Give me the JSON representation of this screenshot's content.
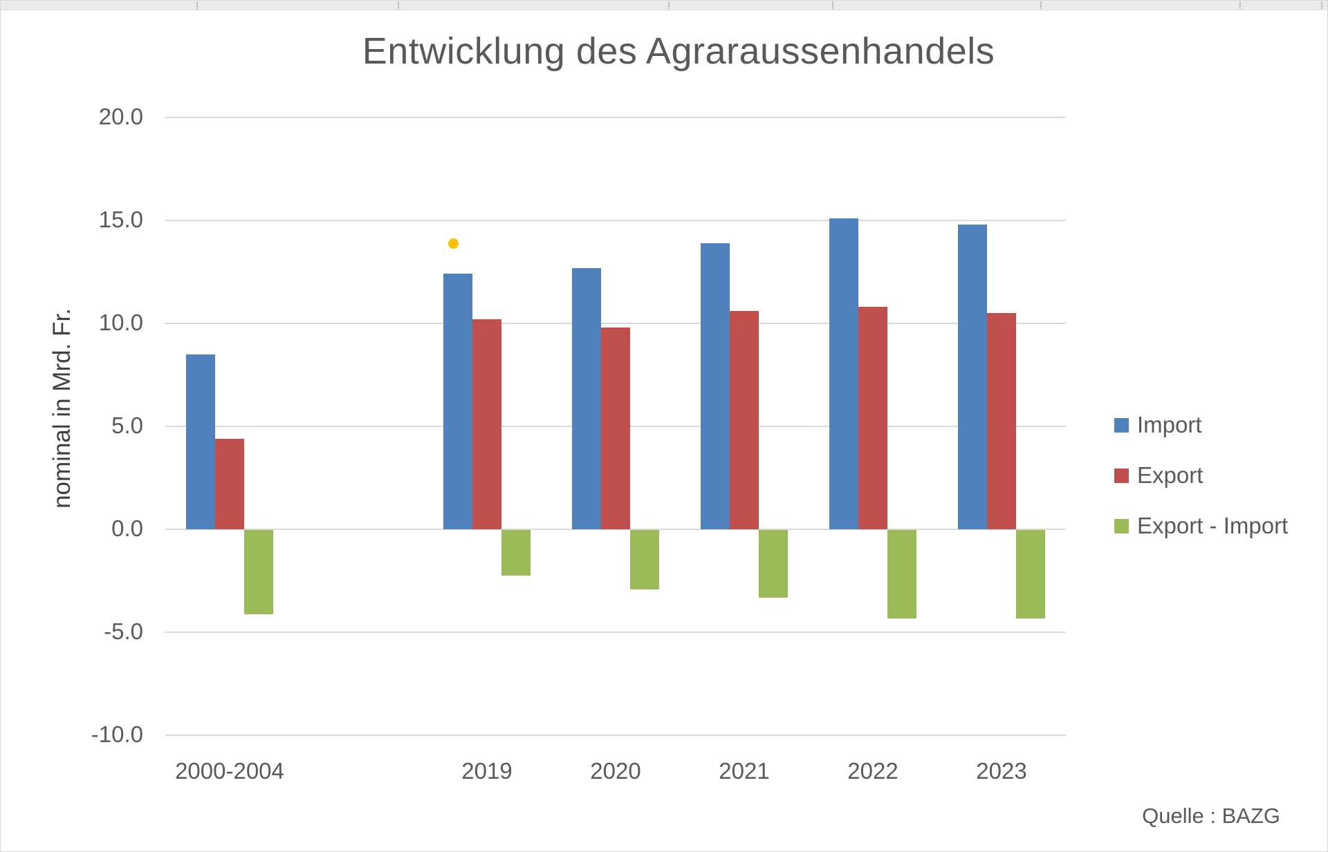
{
  "chart_data": {
    "type": "bar",
    "title": "Entwicklung des Agraraussenhandels",
    "ylabel": "nominal in Mrd. Fr.",
    "source": "Quelle : BAZG",
    "categories": [
      "2000-2004",
      "",
      "2019",
      "2020",
      "2021",
      "2022",
      "2023"
    ],
    "series": [
      {
        "name": "Import",
        "color": "#4F81BD",
        "values": [
          8.5,
          null,
          12.4,
          12.7,
          13.9,
          15.1,
          14.8
        ]
      },
      {
        "name": "Export",
        "color": "#C0504D",
        "values": [
          4.4,
          null,
          10.2,
          9.8,
          10.6,
          10.8,
          10.5
        ]
      },
      {
        "name": "Export - Import",
        "color": "#9BBB59",
        "values": [
          -4.1,
          null,
          -2.2,
          -2.9,
          -3.3,
          -4.3,
          -4.3
        ]
      }
    ],
    "y_tick_values": [
      20,
      15,
      10,
      5,
      0,
      -5,
      -10
    ],
    "y_tick_labels": [
      "20.0",
      "15.0",
      "10.0",
      "5.0",
      "0.0",
      "-5.0",
      "-10.0"
    ],
    "ylim": [
      -10,
      20
    ],
    "grid": true,
    "legend_position": "right",
    "grid_color": "#D9D9D9",
    "text_color": "#595959",
    "annotation_dot": {
      "color": "#FFC000",
      "category_index": 2,
      "value": 13.9
    }
  }
}
